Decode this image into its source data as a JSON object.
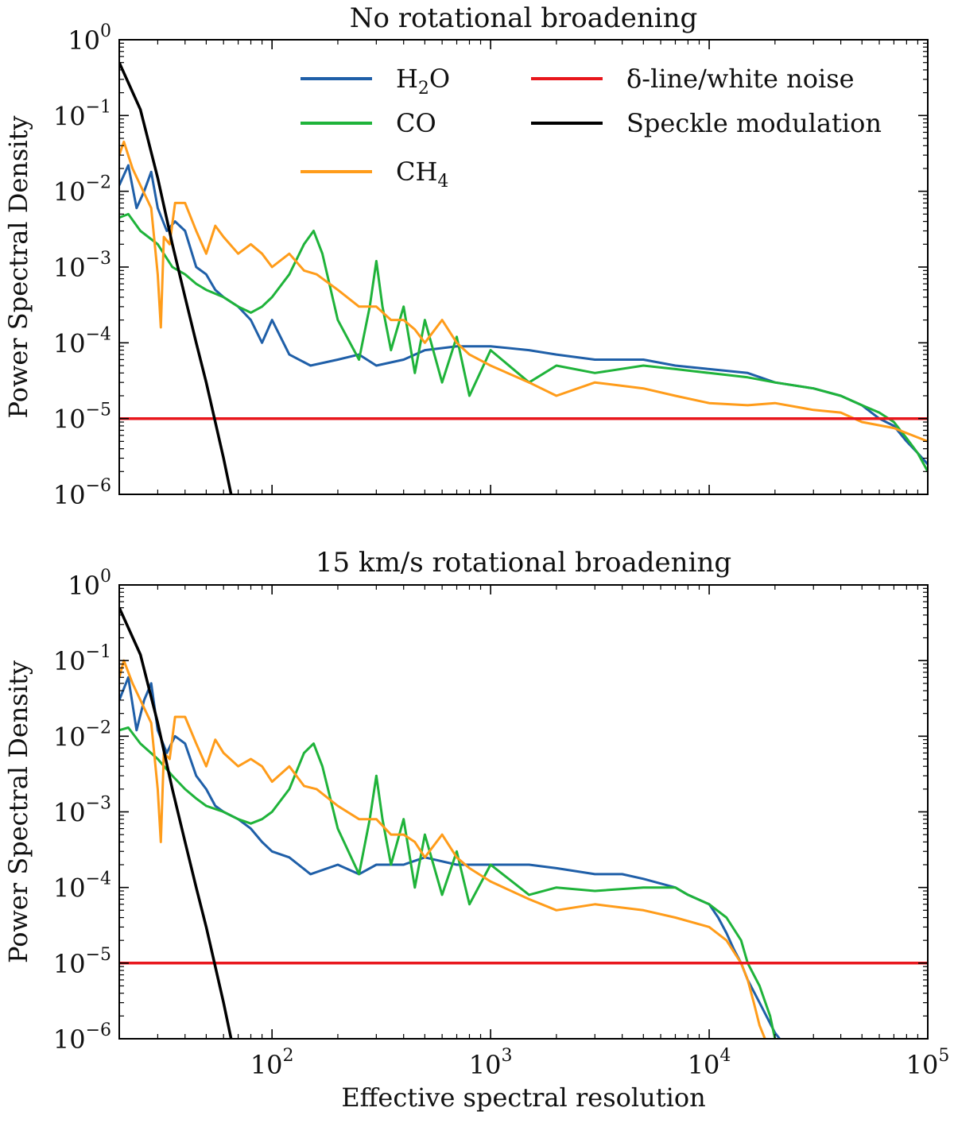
{
  "chart_data": [
    {
      "type": "line",
      "title": "No rotational broadening",
      "xlabel": "",
      "ylabel": "Power Spectral Density",
      "xscale": "log",
      "yscale": "log",
      "xlim": [
        20,
        100000
      ],
      "ylim": [
        1e-06,
        1
      ],
      "y_ticks": [
        {
          "base": "10",
          "exp": "0"
        },
        {
          "base": "10",
          "exp": "−1"
        },
        {
          "base": "10",
          "exp": "−2"
        },
        {
          "base": "10",
          "exp": "−3"
        },
        {
          "base": "10",
          "exp": "−4"
        },
        {
          "base": "10",
          "exp": "−5"
        },
        {
          "base": "10",
          "exp": "−6"
        }
      ],
      "legend": [
        {
          "name": "H",
          "sub": "2",
          "tail": "O",
          "color": "#1f5fa8"
        },
        {
          "name": "CO",
          "sub": "",
          "tail": "",
          "color": "#1fb33a"
        },
        {
          "name": "CH",
          "sub": "4",
          "tail": "",
          "color": "#ff9c1a"
        },
        {
          "name": "δ-line/white noise",
          "sub": "",
          "tail": "",
          "color": "#e8161c"
        },
        {
          "name": "Speckle modulation",
          "sub": "",
          "tail": "",
          "color": "#000000"
        }
      ],
      "series": [
        {
          "name": "H2O",
          "color": "#1f5fa8",
          "x": [
            20,
            22,
            24,
            26,
            28,
            30,
            33,
            36,
            40,
            45,
            50,
            55,
            60,
            70,
            80,
            90,
            100,
            120,
            150,
            200,
            250,
            300,
            400,
            500,
            700,
            1000,
            1500,
            2000,
            3000,
            5000,
            7000,
            10000,
            15000,
            20000,
            30000,
            40000,
            50000,
            60000,
            70000,
            80000,
            90000,
            100000
          ],
          "y": [
            0.012,
            0.022,
            0.006,
            0.01,
            0.018,
            0.006,
            0.003,
            0.004,
            0.003,
            0.001,
            0.0008,
            0.0005,
            0.0004,
            0.0003,
            0.0002,
            0.0001,
            0.0002,
            7e-05,
            5e-05,
            6e-05,
            7e-05,
            5e-05,
            6e-05,
            8e-05,
            9e-05,
            9e-05,
            8e-05,
            7e-05,
            6e-05,
            6e-05,
            5e-05,
            4.5e-05,
            4e-05,
            3e-05,
            2.5e-05,
            2e-05,
            1.5e-05,
            1e-05,
            8e-06,
            5e-06,
            3.5e-06,
            2.5e-06
          ]
        },
        {
          "name": "CO",
          "color": "#1fb33a",
          "x": [
            20,
            22,
            25,
            30,
            35,
            40,
            45,
            50,
            60,
            70,
            80,
            90,
            100,
            120,
            140,
            155,
            170,
            200,
            250,
            280,
            300,
            320,
            350,
            400,
            450,
            500,
            600,
            700,
            800,
            1000,
            1500,
            2000,
            3000,
            5000,
            7000,
            10000,
            15000,
            20000,
            30000,
            40000,
            50000,
            60000,
            70000,
            80000,
            90000,
            100000
          ],
          "y": [
            0.0045,
            0.005,
            0.003,
            0.002,
            0.001,
            0.0008,
            0.0006,
            0.0005,
            0.0004,
            0.0003,
            0.00025,
            0.0003,
            0.0004,
            0.0008,
            0.002,
            0.003,
            0.0015,
            0.0002,
            6e-05,
            0.0003,
            0.0012,
            0.0003,
            8e-05,
            0.0003,
            4e-05,
            0.0002,
            3e-05,
            0.00012,
            2e-05,
            8e-05,
            3e-05,
            5e-05,
            4e-05,
            5e-05,
            4.5e-05,
            4e-05,
            3.5e-05,
            3e-05,
            2.5e-05,
            2e-05,
            1.5e-05,
            1.2e-05,
            9e-06,
            5.5e-06,
            3.5e-06,
            2e-06
          ]
        },
        {
          "name": "CH4",
          "color": "#ff9c1a",
          "x": [
            20,
            21,
            23,
            25,
            28,
            30,
            31,
            32,
            34,
            36,
            40,
            45,
            50,
            55,
            60,
            70,
            80,
            90,
            100,
            120,
            140,
            160,
            200,
            250,
            300,
            350,
            400,
            450,
            500,
            600,
            700,
            800,
            1000,
            1500,
            2000,
            3000,
            5000,
            7000,
            10000,
            15000,
            20000,
            30000,
            40000,
            50000,
            70000,
            100000
          ],
          "y": [
            0.03,
            0.045,
            0.02,
            0.012,
            0.006,
            0.0008,
            0.00016,
            0.0025,
            0.002,
            0.007,
            0.007,
            0.003,
            0.0015,
            0.0035,
            0.0025,
            0.0015,
            0.002,
            0.0015,
            0.001,
            0.0015,
            0.0009,
            0.0008,
            0.0005,
            0.0003,
            0.0003,
            0.0002,
            0.0002,
            0.00015,
            0.0001,
            0.0002,
            0.0001,
            7e-05,
            5e-05,
            3e-05,
            2e-05,
            3e-05,
            2.5e-05,
            2e-05,
            1.6e-05,
            1.5e-05,
            1.6e-05,
            1.3e-05,
            1.2e-05,
            9e-06,
            7.5e-06,
            5e-06
          ]
        },
        {
          "name": "δ-line/white noise",
          "color": "#e8161c",
          "x": [
            20,
            100000
          ],
          "y": [
            1e-05,
            1e-05
          ]
        },
        {
          "name": "Speckle modulation",
          "color": "#000000",
          "x": [
            20,
            25,
            30,
            35,
            40,
            45,
            50,
            55,
            60,
            65
          ],
          "y": [
            0.5,
            0.12,
            0.015,
            0.002,
            0.0004,
            0.0001,
            3e-05,
            9e-06,
            3e-06,
            1e-06
          ]
        }
      ]
    },
    {
      "type": "line",
      "title": "15 km/s rotational broadening",
      "xlabel": "Effective spectral resolution",
      "ylabel": "Power Spectral Density",
      "xscale": "log",
      "yscale": "log",
      "xlim": [
        20,
        100000
      ],
      "ylim": [
        1e-06,
        1
      ],
      "x_ticks": [
        {
          "base": "10",
          "exp": "2"
        },
        {
          "base": "10",
          "exp": "3"
        },
        {
          "base": "10",
          "exp": "4"
        },
        {
          "base": "10",
          "exp": "5"
        }
      ],
      "y_ticks": [
        {
          "base": "10",
          "exp": "0"
        },
        {
          "base": "10",
          "exp": "−1"
        },
        {
          "base": "10",
          "exp": "−2"
        },
        {
          "base": "10",
          "exp": "−3"
        },
        {
          "base": "10",
          "exp": "−4"
        },
        {
          "base": "10",
          "exp": "−5"
        },
        {
          "base": "10",
          "exp": "−6"
        }
      ],
      "series": [
        {
          "name": "H2O",
          "color": "#1f5fa8",
          "x": [
            20,
            22,
            24,
            26,
            28,
            30,
            33,
            36,
            40,
            45,
            50,
            55,
            60,
            70,
            80,
            90,
            100,
            120,
            150,
            200,
            250,
            300,
            400,
            500,
            700,
            1000,
            1500,
            2000,
            3000,
            4000,
            5000,
            7000,
            8000,
            10000,
            11000,
            12000,
            13000,
            14000,
            15000,
            17000,
            20000,
            21000
          ],
          "y": [
            0.03,
            0.06,
            0.012,
            0.03,
            0.05,
            0.012,
            0.006,
            0.01,
            0.008,
            0.003,
            0.002,
            0.0012,
            0.001,
            0.0008,
            0.0006,
            0.0004,
            0.0003,
            0.00025,
            0.00015,
            0.0002,
            0.00015,
            0.0002,
            0.0002,
            0.00025,
            0.0002,
            0.0002,
            0.0002,
            0.00018,
            0.00015,
            0.00015,
            0.00013,
            0.0001,
            8e-05,
            6e-05,
            4e-05,
            2.5e-05,
            1.5e-05,
            1e-05,
            6e-06,
            3e-06,
            1.2e-06,
            1e-06
          ]
        },
        {
          "name": "CO",
          "color": "#1fb33a",
          "x": [
            20,
            22,
            25,
            30,
            35,
            40,
            45,
            50,
            60,
            70,
            80,
            90,
            100,
            120,
            140,
            155,
            170,
            200,
            250,
            280,
            300,
            320,
            350,
            400,
            450,
            500,
            600,
            700,
            800,
            1000,
            1500,
            2000,
            3000,
            5000,
            7000,
            8000,
            10000,
            12000,
            14000,
            15000,
            17000,
            19000,
            20000
          ],
          "y": [
            0.012,
            0.013,
            0.008,
            0.005,
            0.003,
            0.002,
            0.0015,
            0.0012,
            0.001,
            0.0008,
            0.0007,
            0.0008,
            0.001,
            0.002,
            0.006,
            0.008,
            0.004,
            0.0006,
            0.00015,
            0.0008,
            0.003,
            0.0008,
            0.0002,
            0.0008,
            0.0001,
            0.0005,
            8e-05,
            0.0003,
            6e-05,
            0.0002,
            8e-05,
            0.0001,
            9e-05,
            0.0001,
            0.0001,
            8e-05,
            6e-05,
            4e-05,
            2e-05,
            1e-05,
            5e-06,
            2e-06,
            1e-06
          ]
        },
        {
          "name": "CH4",
          "color": "#ff9c1a",
          "x": [
            20,
            21,
            23,
            25,
            28,
            30,
            31,
            32,
            34,
            36,
            40,
            45,
            50,
            55,
            60,
            70,
            80,
            90,
            100,
            120,
            140,
            160,
            200,
            250,
            300,
            350,
            400,
            450,
            500,
            600,
            700,
            800,
            1000,
            1500,
            2000,
            3000,
            5000,
            7000,
            10000,
            12000,
            14000,
            15000,
            16000,
            17000,
            18000
          ],
          "y": [
            0.06,
            0.1,
            0.05,
            0.03,
            0.015,
            0.002,
            0.0004,
            0.006,
            0.005,
            0.018,
            0.018,
            0.008,
            0.004,
            0.009,
            0.006,
            0.004,
            0.005,
            0.004,
            0.0025,
            0.004,
            0.0022,
            0.002,
            0.0012,
            0.0008,
            0.0008,
            0.0005,
            0.0005,
            0.0004,
            0.00025,
            0.0005,
            0.00025,
            0.00018,
            0.00012,
            7e-05,
            5e-05,
            6e-05,
            5e-05,
            4e-05,
            3e-05,
            2e-05,
            1e-05,
            6e-06,
            3e-06,
            1.5e-06,
            1e-06
          ]
        },
        {
          "name": "δ-line/white noise",
          "color": "#e8161c",
          "x": [
            20,
            100000
          ],
          "y": [
            1e-05,
            1e-05
          ]
        },
        {
          "name": "Speckle modulation",
          "color": "#000000",
          "x": [
            20,
            25,
            30,
            35,
            40,
            45,
            50,
            55,
            60,
            65
          ],
          "y": [
            0.5,
            0.12,
            0.015,
            0.002,
            0.0004,
            0.0001,
            3e-05,
            9e-06,
            3e-06,
            1e-06
          ]
        }
      ]
    }
  ]
}
